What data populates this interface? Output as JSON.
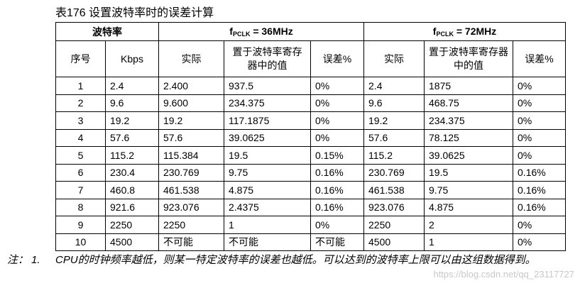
{
  "caption": "表176 设置波特率时的误差计算",
  "header": {
    "baud_group": "波特率",
    "group1": {
      "f": "f",
      "sub": "PCLK",
      "rest": " = 36MHz"
    },
    "group2": {
      "f": "f",
      "sub": "PCLK",
      "rest": " = 72MHz"
    },
    "columns": [
      "序号",
      "Kbps",
      "实际",
      "置于波特率寄存器中的值",
      "误差%",
      "实际",
      "置于波特率寄存器中的值",
      "误差%"
    ]
  },
  "rows": [
    [
      "1",
      "2.4",
      "2.400",
      "937.5",
      "0%",
      "2.4",
      "1875",
      "0%"
    ],
    [
      "2",
      "9.6",
      "9.600",
      "234.375",
      "0%",
      "9.6",
      "468.75",
      "0%"
    ],
    [
      "3",
      "19.2",
      "19.2",
      "117.1875",
      "0%",
      "19.2",
      "234.375",
      "0%"
    ],
    [
      "4",
      "57.6",
      "57.6",
      "39.0625",
      "0%",
      "57.6",
      "78.125",
      "0%"
    ],
    [
      "5",
      "115.2",
      "115.384",
      "19.5",
      "0.15%",
      "115.2",
      "39.0625",
      "0%"
    ],
    [
      "6",
      "230.4",
      "230.769",
      "9.75",
      "0.16%",
      "230.769",
      "19.5",
      "0.16%"
    ],
    [
      "7",
      "460.8",
      "461.538",
      "4.875",
      "0.16%",
      "461.538",
      "9.75",
      "0.16%"
    ],
    [
      "8",
      "921.6",
      "923.076",
      "2.4375",
      "0.16%",
      "923.076",
      "4.875",
      "0.16%"
    ],
    [
      "9",
      "2250",
      "2250",
      "1",
      "0%",
      "2250",
      "2",
      "0%"
    ],
    [
      "10",
      "4500",
      "不可能",
      "不可能",
      "不可能",
      "4500",
      "1",
      "0%"
    ]
  ],
  "note": {
    "tag": "注：",
    "number": "1.",
    "text": "CPU的时钟频率越低，则某一特定波特率的误差也越低。可以达到的波特率上限可以由这组数据得到。"
  },
  "watermark": "https://blog.csdn.net/qq_23117727"
}
